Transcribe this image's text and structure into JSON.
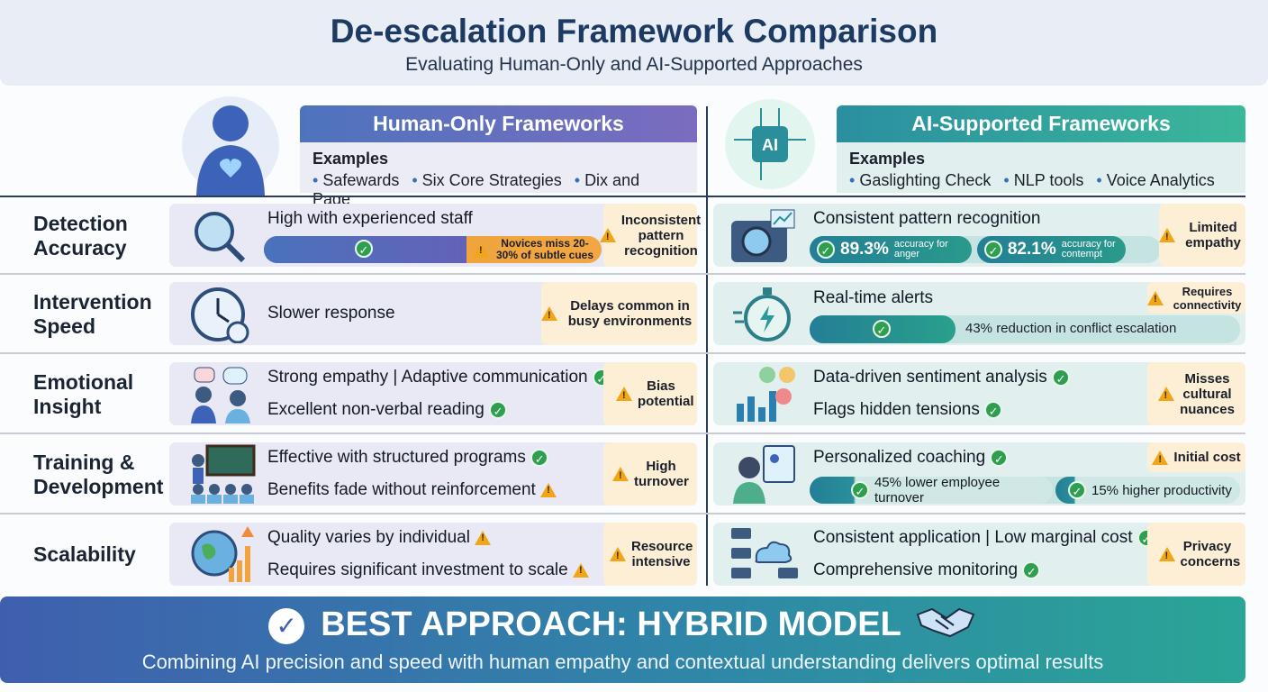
{
  "header": {
    "title": "De-escalation Framework Comparison",
    "subtitle": "Evaluating Human-Only and AI-Supported Approaches"
  },
  "human": {
    "title": "Human-Only Frameworks",
    "examples_label": "Examples",
    "examples": [
      "Safewards",
      "Six Core Strategies",
      "Dix and Page"
    ],
    "color": "#4f6fbf"
  },
  "ai": {
    "title": "AI-Supported Frameworks",
    "examples_label": "Examples",
    "examples": [
      "Gaslighting Check",
      "NLP tools",
      "Voice Analytics"
    ],
    "icon_text": "AI",
    "color": "#2a9a98"
  },
  "rows": [
    {
      "label": "Detection Accuracy",
      "human": {
        "text": "High with experienced staff",
        "bar_warning": "Novices miss 20-30% of subtle cues",
        "warning": "Inconsistent pattern recognition"
      },
      "ai": {
        "text": "Consistent pattern recognition",
        "stats": [
          {
            "value": "89.3%",
            "note": "accuracy for anger"
          },
          {
            "value": "82.1%",
            "note": "accuracy for contempt"
          }
        ],
        "warning": "Limited empathy"
      }
    },
    {
      "label": "Intervention Speed",
      "human": {
        "text": "Slower response",
        "warning": "Delays common in busy environments"
      },
      "ai": {
        "text": "Real-time alerts",
        "bar_text": "43% reduction in conflict escalation",
        "warning": "Requires connectivity"
      }
    },
    {
      "label": "Emotional Insight",
      "human": {
        "lines": [
          "Strong empathy | Adaptive communication",
          "Excellent non-verbal reading"
        ],
        "warning": "Bias potential"
      },
      "ai": {
        "lines": [
          "Data-driven sentiment analysis",
          "Flags hidden tensions"
        ],
        "warning": "Misses cultural nuances"
      }
    },
    {
      "label": "Training & Development",
      "human": {
        "lines": [
          "Effective with structured programs",
          "Benefits fade without reinforcement"
        ],
        "warning": "High turnover"
      },
      "ai": {
        "text": "Personalized coaching",
        "stats": [
          "45% lower employee turnover",
          "15% higher productivity"
        ],
        "warning": "Initial cost"
      }
    },
    {
      "label": "Scalability",
      "human": {
        "lines": [
          "Quality varies by individual",
          "Requires significant investment to scale"
        ],
        "warning": "Resource intensive"
      },
      "ai": {
        "lines": [
          "Consistent application | Low marginal cost",
          "Comprehensive monitoring"
        ],
        "warning": "Privacy concerns"
      }
    }
  ],
  "footer": {
    "title": "BEST APPROACH: HYBRID MODEL",
    "subtitle": "Combining AI precision and speed with human empathy and contextual understanding delivers optimal results"
  },
  "colors": {
    "navy": "#1d3a62",
    "warning": "#f2a516",
    "check": "#2e9e4f",
    "human_bar": "#4f6fbf",
    "ai_bar": "#2a9a98"
  }
}
